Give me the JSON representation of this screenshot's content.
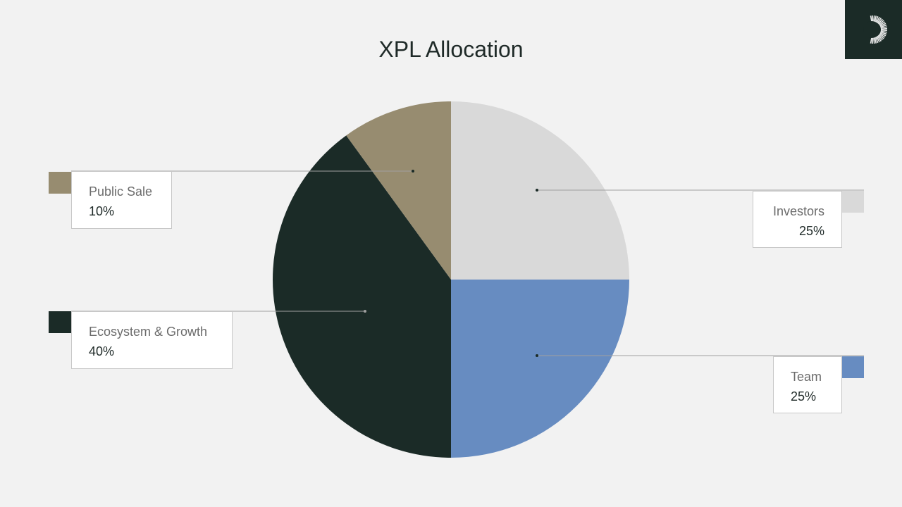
{
  "chart_data": {
    "type": "pie",
    "title": "XPL Allocation",
    "slices": [
      {
        "label": "Investors",
        "value": 25,
        "display": "25%",
        "color": "#d9d9d9"
      },
      {
        "label": "Team",
        "value": 25,
        "display": "25%",
        "color": "#678cc1"
      },
      {
        "label": "Ecosystem & Growth",
        "value": 40,
        "display": "40%",
        "color": "#1b2b27"
      },
      {
        "label": "Public Sale",
        "value": 10,
        "display": "10%",
        "color": "#978c70"
      }
    ],
    "start": "top",
    "direction": "clockwise",
    "legend": "callouts"
  },
  "logo": {
    "icon": "radial-sunburst-logo",
    "background": "#1b2b27"
  }
}
